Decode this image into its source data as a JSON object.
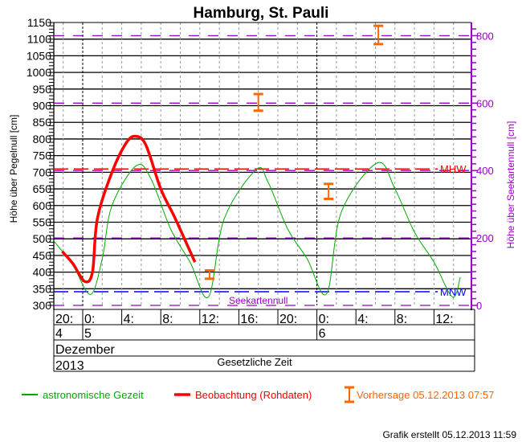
{
  "chart_data": {
    "type": "line",
    "title": "Hamburg, St. Pauli",
    "ylabel": "Höhe über Pegelnull [cm]",
    "ylabel_right": "Höhe über Seekartennull [cm]",
    "ylim": [
      300,
      1150
    ],
    "yticks": [
      300,
      350,
      400,
      450,
      500,
      550,
      600,
      650,
      700,
      750,
      800,
      850,
      900,
      950,
      1000,
      1050,
      1100,
      1150
    ],
    "yticks_right": [
      0,
      200,
      400,
      600,
      800
    ],
    "seekartennull_offset_cm": 300,
    "grid": true,
    "x_unit": "hours since 05.12.2013 00:00",
    "xlim": [
      -3,
      40.2
    ],
    "x_hour_ticks": [
      {
        "h": -4,
        "label": "20:"
      },
      {
        "h": 0,
        "label": "0:"
      },
      {
        "h": 4,
        "label": "4:"
      },
      {
        "h": 8,
        "label": "8:"
      },
      {
        "h": 12,
        "label": "12:"
      },
      {
        "h": 16,
        "label": "16:"
      },
      {
        "h": 20,
        "label": "20:"
      },
      {
        "h": 24,
        "label": "0:"
      },
      {
        "h": 28,
        "label": "4:"
      },
      {
        "h": 32,
        "label": "8:"
      },
      {
        "h": 36,
        "label": "12:"
      }
    ],
    "days": [
      {
        "h": -3,
        "label": "4"
      },
      {
        "h": 0,
        "label": "5"
      },
      {
        "h": 24,
        "label": "6"
      }
    ],
    "month": "Dezember",
    "year": "2013",
    "time_label": "Gesetzliche Zeit",
    "reference_lines": [
      {
        "label": "MHW",
        "value": 710,
        "color": "#ff0000"
      },
      {
        "label": "MNW",
        "value": 341,
        "color": "#0000ff"
      },
      {
        "label": "Seekartennull",
        "value": 300,
        "color": "#9900cc"
      }
    ],
    "series": [
      {
        "name": "astronomische Gezeit",
        "color": "#00aa00",
        "points": [
          [
            -3,
            495
          ],
          [
            -1,
            420
          ],
          [
            0.8,
            333
          ],
          [
            2,
            440
          ],
          [
            3,
            600
          ],
          [
            5.5,
            720
          ],
          [
            7,
            680
          ],
          [
            9,
            530
          ],
          [
            11,
            430
          ],
          [
            12.9,
            326
          ],
          [
            14.5,
            560
          ],
          [
            17.8,
            708
          ],
          [
            19,
            670
          ],
          [
            21,
            530
          ],
          [
            23,
            440
          ],
          [
            25,
            335
          ],
          [
            26.5,
            580
          ],
          [
            30.2,
            728
          ],
          [
            32,
            650
          ],
          [
            34,
            520
          ],
          [
            36,
            430
          ],
          [
            37.9,
            325
          ],
          [
            38.7,
            385
          ]
        ]
      },
      {
        "name": "Beobachtung (Rohdaten)",
        "color": "#ff0000",
        "points": [
          [
            -2.1,
            462
          ],
          [
            -1,
            425
          ],
          [
            0.2,
            372
          ],
          [
            1,
            400
          ],
          [
            1.5,
            560
          ],
          [
            3,
            700
          ],
          [
            4.5,
            790
          ],
          [
            5.5,
            808
          ],
          [
            6.5,
            780
          ],
          [
            8,
            650
          ],
          [
            9.5,
            560
          ],
          [
            11.5,
            430
          ]
        ]
      },
      {
        "name": "Vorhersage 05.12.2013 07:57",
        "color": "#ff6600",
        "type": "errorbar",
        "points": [
          [
            13,
            380,
            405
          ],
          [
            18,
            885,
            935
          ],
          [
            25.2,
            620,
            665
          ],
          [
            30.3,
            1085,
            1140
          ]
        ]
      }
    ]
  },
  "footer": "Grafik erstellt 05.12.2013 11:59"
}
